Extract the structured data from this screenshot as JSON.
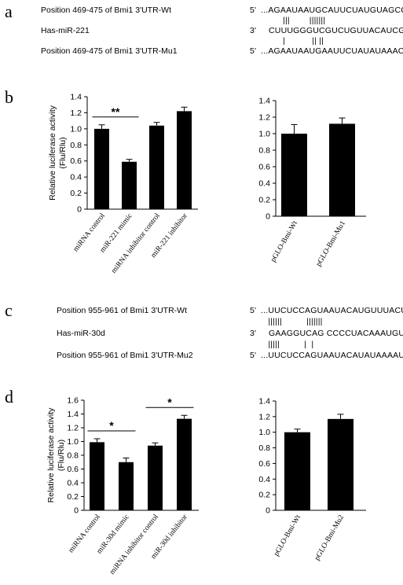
{
  "panels": {
    "a": {
      "letter": "a",
      "rows": [
        {
          "label": "Position 469-475 of Bmi1 3'UTR-Wt",
          "prefix": "5'",
          "seq": "...AGAAUAAUGCAUUCUAUGUAGCC..."
        },
        {
          "label": "",
          "prefix": "",
          "seq": "         |||        |||||||"
        },
        {
          "label": "Has-miR-221",
          "prefix": "3'",
          "seq": "CUUUGGGUCGUCUGUUACAUCGA"
        },
        {
          "label": "",
          "prefix": "",
          "seq": "         |           || ||"
        },
        {
          "label": "Position 469-475 of Bmi1 3'UTR-Mu1",
          "prefix": "5'",
          "seq": "...AGAAUAAUGAAUUCUAUAUAAAC..."
        }
      ]
    },
    "b": {
      "letter": "b"
    },
    "c": {
      "letter": "c",
      "rows": [
        {
          "label": "Position 955-961 of Bmi1 3'UTR-Wt",
          "prefix": "5'",
          "seq": "...UUCUCCAGUAAUACAUGUUUACU..."
        },
        {
          "label": "",
          "prefix": "",
          "seq": "   ||||||          |||||||"
        },
        {
          "label": "Has-miR-30d",
          "prefix": "3'",
          "seq": "GAAGGUCAG CCCCUACAAAUGU"
        },
        {
          "label": "",
          "prefix": "",
          "seq": "   |||||          |  |"
        },
        {
          "label": "Position 955-961 of Bmi1 3'UTR-Mu2",
          "prefix": "5'",
          "seq": "...UUCUCCAGUAAUACAUAUAAAAU..."
        }
      ]
    },
    "d": {
      "letter": "d"
    }
  },
  "chart_data": [
    {
      "id": "b-left",
      "type": "bar",
      "ylabel": "Relative luciferase activity\n(Flu/Rlu)",
      "ylim": [
        0,
        1.4
      ],
      "yticks": [
        "0",
        "0.2",
        "0.4",
        "0.6",
        "0.8",
        "1.0",
        "1.2",
        "1.4"
      ],
      "categories": [
        "miRNA control",
        "miR-221 mimic",
        "miRNA inhibitor control",
        "miR-221 inhibitor"
      ],
      "values": [
        1.0,
        0.59,
        1.04,
        1.22
      ],
      "errors": [
        0.05,
        0.03,
        0.04,
        0.05
      ],
      "bar_color": "#000000",
      "significance": [
        {
          "from": 0,
          "to": 1,
          "label": "**"
        }
      ]
    },
    {
      "id": "b-right",
      "type": "bar",
      "ylabel": "",
      "ylim": [
        0,
        1.4
      ],
      "yticks": [
        "0",
        "0.2",
        "0.4",
        "0.6",
        "0.8",
        "1.0",
        "1.2",
        "1.4"
      ],
      "categories": [
        "pGLO-Bmi-Wt",
        "pGLO-Bmi-Mu1"
      ],
      "values": [
        1.0,
        1.12
      ],
      "errors": [
        0.11,
        0.07
      ],
      "bar_color": "#000000",
      "significance": []
    },
    {
      "id": "d-left",
      "type": "bar",
      "ylabel": "Relative luciferase activity\n(Flu/Rlu)",
      "ylim": [
        0,
        1.6
      ],
      "yticks": [
        "0",
        "0.2",
        "0.4",
        "0.6",
        "0.8",
        "1.0",
        "1.2",
        "1.4",
        "1.6"
      ],
      "categories": [
        "miRNA control",
        "miR-30d mimic",
        "miRNA inhibitor control",
        "miR-30d inhibitor"
      ],
      "values": [
        0.99,
        0.7,
        0.94,
        1.33
      ],
      "errors": [
        0.05,
        0.06,
        0.04,
        0.05
      ],
      "bar_color": "#000000",
      "significance": [
        {
          "from": 0,
          "to": 1,
          "label": "*"
        },
        {
          "from": 2,
          "to": 3,
          "label": "*"
        }
      ]
    },
    {
      "id": "d-right",
      "type": "bar",
      "ylabel": "",
      "ylim": [
        0,
        1.4
      ],
      "yticks": [
        "0",
        "0.2",
        "0.4",
        "0.6",
        "0.8",
        "1.0",
        "1.2",
        "1.4"
      ],
      "categories": [
        "pGLO-Bmi-Wt",
        "pGLO-Bmi-Mu2"
      ],
      "values": [
        1.0,
        1.17
      ],
      "errors": [
        0.04,
        0.06
      ],
      "bar_color": "#000000",
      "significance": []
    }
  ]
}
